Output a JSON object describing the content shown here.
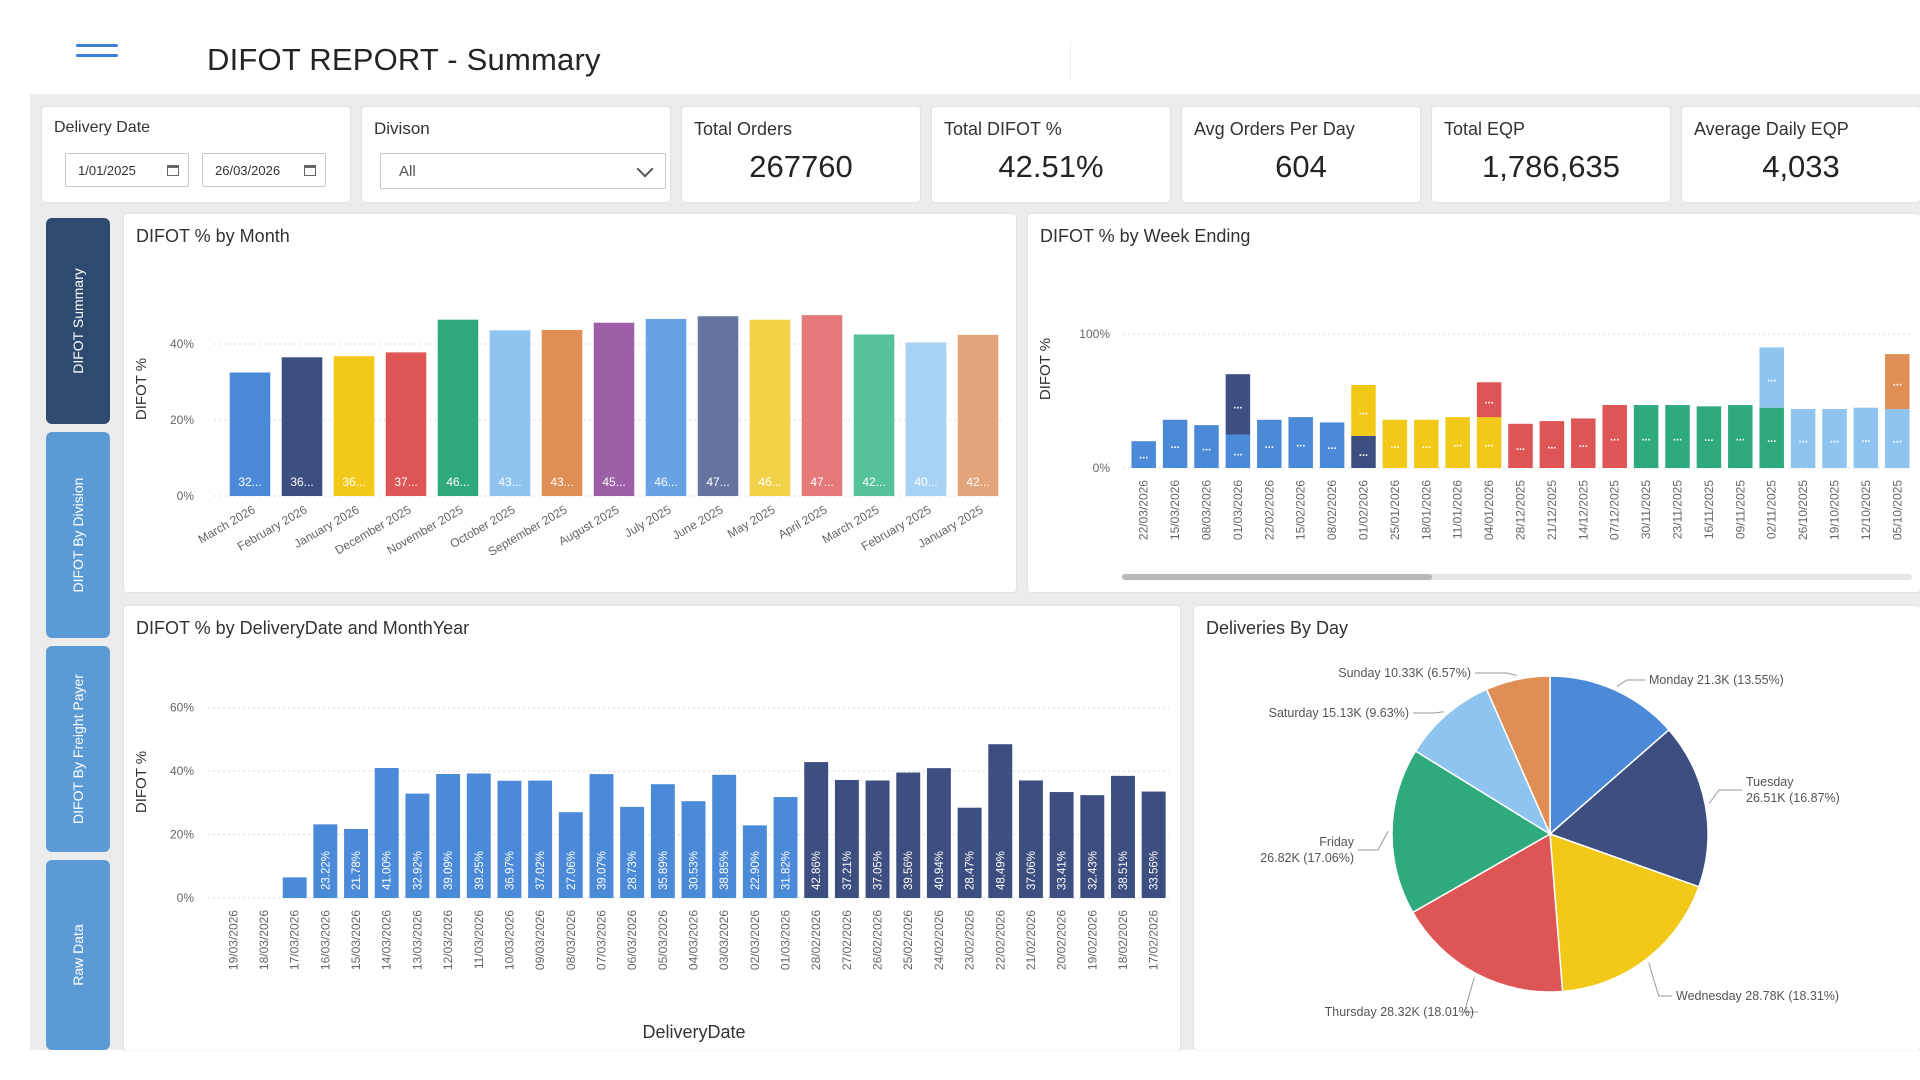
{
  "header": {
    "title": "DIFOT REPORT - Summary"
  },
  "filters": {
    "delivery_date_label": "Delivery Date",
    "start_date": "1/01/2025",
    "end_date": "26/03/2026",
    "division_label": "Divison",
    "division_value": "All"
  },
  "kpis": [
    {
      "label": "Total Orders",
      "value": "267760"
    },
    {
      "label": "Total DIFOT %",
      "value": "42.51%"
    },
    {
      "label": "Avg Orders Per Day",
      "value": "604"
    },
    {
      "label": "Total EQP",
      "value": "1,786,635"
    },
    {
      "label": "Average Daily EQP",
      "value": "4,033"
    }
  ],
  "nav": [
    {
      "label": "DIFOT Summary",
      "active": true
    },
    {
      "label": "DIFOT By Division",
      "active": false
    },
    {
      "label": "DIFOT By Freight Payer",
      "active": false
    },
    {
      "label": "Raw Data",
      "active": false
    }
  ],
  "icons": {
    "menu": "hamburger-icon",
    "calendar": "calendar-icon",
    "dropdown": "chevron-down-icon"
  },
  "chart_data": [
    {
      "id": "month",
      "type": "bar",
      "title": "DIFOT % by Month",
      "ylabel": "DIFOT %",
      "xlabel": "",
      "ylim": [
        0,
        50
      ],
      "yticks": [
        "0%",
        "20%",
        "40%"
      ],
      "ytick_values": [
        0,
        20,
        40
      ],
      "grid": true,
      "categories": [
        "March 2026",
        "February 2026",
        "January 2026",
        "December 2025",
        "November 2025",
        "October 2025",
        "September 2025",
        "August 2025",
        "July 2025",
        "June 2025",
        "May 2025",
        "April 2025",
        "March 2025",
        "February 2025",
        "January 2025"
      ],
      "values": [
        32.5,
        36.5,
        36.8,
        37.8,
        46.4,
        43.6,
        43.7,
        45.6,
        46.6,
        47.3,
        46.4,
        47.6,
        42.5,
        40.4,
        42.4
      ],
      "data_labels": [
        "32...",
        "36...",
        "36...",
        "37...",
        "46...",
        "43...",
        "43...",
        "45...",
        "46...",
        "47...",
        "46...",
        "47...",
        "42...",
        "40...",
        "42..."
      ],
      "colors": [
        "#4a8ad8",
        "#3d4f80",
        "#f2c918",
        "#de5555",
        "#2eaa7c",
        "#8fc4f0",
        "#df8e56",
        "#9c5fa8",
        "#67a3e3",
        "#6675a0",
        "#f2d248",
        "#e57878",
        "#56c29a",
        "#a8d2f4",
        "#e4a47b"
      ]
    },
    {
      "id": "week",
      "type": "bar",
      "title": "DIFOT % by Week Ending",
      "ylabel": "DIFOT %",
      "xlabel": "",
      "ylim": [
        0,
        100
      ],
      "yticks": [
        "0%",
        "100%"
      ],
      "ytick_values": [
        0,
        100
      ],
      "grid": true,
      "categories": [
        "22/03/2026",
        "15/03/2026",
        "08/03/2026",
        "01/03/2026",
        "22/02/2026",
        "15/02/2026",
        "08/02/2026",
        "01/02/2026",
        "25/01/2026",
        "18/01/2026",
        "11/01/2026",
        "04/01/2026",
        "28/12/2025",
        "21/12/2025",
        "14/12/2025",
        "07/12/2025",
        "30/11/2025",
        "23/11/2025",
        "16/11/2025",
        "09/11/2025",
        "02/11/2025",
        "26/10/2025",
        "19/10/2025",
        "12/10/2025",
        "05/10/2025"
      ],
      "series": [
        {
          "values": [
            20,
            36,
            32,
            25,
            36,
            38,
            34,
            0,
            0,
            0,
            0,
            0,
            0,
            0,
            0,
            0,
            0,
            0,
            0,
            0,
            0,
            0,
            0,
            0,
            0
          ],
          "color": "#4a8ad8"
        },
        {
          "values": [
            0,
            0,
            0,
            45,
            0,
            0,
            0,
            24,
            0,
            0,
            0,
            0,
            0,
            0,
            0,
            0,
            0,
            0,
            0,
            0,
            0,
            0,
            0,
            0,
            0
          ],
          "color": "#3d4f80"
        },
        {
          "values": [
            0,
            0,
            0,
            0,
            0,
            0,
            0,
            38,
            36,
            36,
            38,
            38,
            0,
            0,
            0,
            0,
            0,
            0,
            0,
            0,
            0,
            0,
            0,
            0,
            0
          ],
          "color": "#f2c918"
        },
        {
          "values": [
            0,
            0,
            0,
            0,
            0,
            0,
            0,
            0,
            0,
            0,
            0,
            26,
            33,
            35,
            37,
            47,
            0,
            0,
            0,
            0,
            0,
            0,
            0,
            0,
            0
          ],
          "color": "#de5555"
        },
        {
          "values": [
            0,
            0,
            0,
            0,
            0,
            0,
            0,
            0,
            0,
            0,
            0,
            0,
            0,
            0,
            0,
            0,
            47,
            47,
            46,
            47,
            45,
            0,
            0,
            0,
            0
          ],
          "color": "#2eaa7c"
        },
        {
          "values": [
            0,
            0,
            0,
            0,
            0,
            0,
            0,
            0,
            0,
            0,
            0,
            0,
            0,
            0,
            0,
            0,
            0,
            0,
            0,
            0,
            45,
            44,
            44,
            45,
            44
          ],
          "color": "#8fc4f0"
        },
        {
          "values": [
            0,
            0,
            0,
            0,
            0,
            0,
            0,
            0,
            0,
            0,
            0,
            0,
            0,
            0,
            0,
            0,
            0,
            0,
            0,
            0,
            0,
            0,
            0,
            0,
            41
          ],
          "color": "#df8e56"
        }
      ],
      "data_label": "..."
    },
    {
      "id": "daily",
      "type": "bar",
      "title": "DIFOT % by DeliveryDate and MonthYear",
      "ylabel": "DIFOT %",
      "xlabel": "DeliveryDate",
      "ylim": [
        0,
        70
      ],
      "yticks": [
        "0%",
        "20%",
        "40%",
        "60%"
      ],
      "ytick_values": [
        0,
        20,
        40,
        60
      ],
      "grid": true,
      "categories": [
        "19/03/2026",
        "18/03/2026",
        "17/03/2026",
        "16/03/2026",
        "15/03/2026",
        "14/03/2026",
        "13/03/2026",
        "12/03/2026",
        "11/03/2026",
        "10/03/2026",
        "09/03/2026",
        "08/03/2026",
        "07/03/2026",
        "06/03/2026",
        "05/03/2026",
        "04/03/2026",
        "03/03/2026",
        "02/03/2026",
        "01/03/2026",
        "28/02/2026",
        "27/02/2026",
        "26/02/2026",
        "25/02/2026",
        "24/02/2026",
        "23/02/2026",
        "22/02/2026",
        "21/02/2026",
        "20/02/2026",
        "19/02/2026",
        "18/02/2026",
        "17/02/2026"
      ],
      "values": [
        0,
        0,
        6.5,
        23.22,
        21.78,
        41.0,
        32.92,
        39.09,
        39.25,
        36.97,
        37.02,
        27.06,
        39.07,
        28.73,
        35.89,
        30.53,
        38.85,
        22.9,
        31.82,
        42.86,
        37.21,
        37.05,
        39.56,
        40.94,
        28.47,
        48.49,
        37.06,
        33.41,
        32.43,
        38.51,
        33.56
      ],
      "data_labels": [
        "",
        "",
        "",
        "23.22%",
        "21.78%",
        "41.00%",
        "32.92%",
        "39.09%",
        "39.25%",
        "36.97%",
        "37.02%",
        "27.06%",
        "39.07%",
        "28.73%",
        "35.89%",
        "30.53%",
        "38.85%",
        "22.90%",
        "31.82%",
        "42.86%",
        "37.21%",
        "37.05%",
        "39.56%",
        "40.94%",
        "28.47%",
        "48.49%",
        "37.06%",
        "33.41%",
        "32.43%",
        "38.51%",
        "33.56%"
      ],
      "colors_by_month": {
        "March": "#4a8ad8",
        "February": "#3d4f80"
      },
      "month_of_bar": [
        "March",
        "March",
        "March",
        "March",
        "March",
        "March",
        "March",
        "March",
        "March",
        "March",
        "March",
        "March",
        "March",
        "March",
        "March",
        "March",
        "March",
        "March",
        "March",
        "February",
        "February",
        "February",
        "February",
        "February",
        "February",
        "February",
        "February",
        "February",
        "February",
        "February",
        "February"
      ]
    },
    {
      "id": "pie",
      "type": "pie",
      "title": "Deliveries By Day",
      "slices": [
        {
          "label": "Monday 21.3K (13.55%)",
          "value": 13.55,
          "color": "#4a8ad8"
        },
        {
          "label": "Tuesday 26.51K (16.87%)",
          "value": 16.87,
          "color": "#3d4f80"
        },
        {
          "label": "Wednesday 28.78K (18.31%)",
          "value": 18.31,
          "color": "#f2c918"
        },
        {
          "label": "Thursday 28.32K (18.01%)",
          "value": 18.01,
          "color": "#de5555"
        },
        {
          "label": "Friday 26.82K (17.06%)",
          "value": 17.06,
          "color": "#2eaa7c"
        },
        {
          "label": "Saturday 15.13K (9.63%)",
          "value": 9.63,
          "color": "#8fc4f0"
        },
        {
          "label": "Sunday 10.33K (6.57%)",
          "value": 6.57,
          "color": "#df8e56"
        }
      ]
    }
  ]
}
